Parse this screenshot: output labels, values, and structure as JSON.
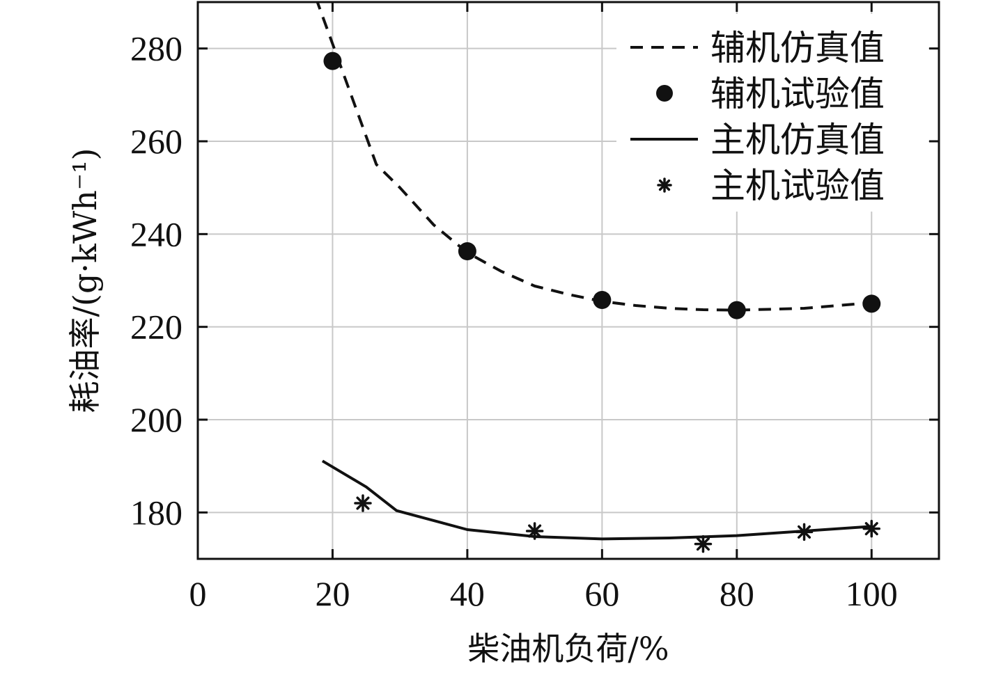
{
  "chart_data": {
    "type": "line",
    "xlabel": "柴油机负荷/%",
    "ylabel": "耗油率/(g·kWh⁻¹)",
    "xlim": [
      0,
      110
    ],
    "ylim": [
      170,
      290
    ],
    "x_ticks": [
      0,
      20,
      40,
      60,
      80,
      100
    ],
    "y_ticks": [
      180,
      200,
      220,
      240,
      260,
      280
    ],
    "x_tick_labels": [
      "0",
      "20",
      "40",
      "60",
      "80",
      "100"
    ],
    "y_tick_labels": [
      "180",
      "200",
      "220",
      "240",
      "260",
      "280"
    ],
    "grid": true,
    "legend_position": "top-right",
    "series": [
      {
        "name": "辅机仿真值",
        "style": "dashed-line",
        "color": "#111111",
        "x": [
          17.5,
          20,
          22.5,
          25,
          26.5,
          30,
          35,
          40,
          45,
          50,
          55,
          60,
          65,
          70,
          75,
          80,
          90,
          100
        ],
        "y": [
          291,
          281,
          271,
          261,
          255,
          250,
          242,
          236,
          232,
          228.8,
          227,
          225.5,
          224.6,
          224,
          223.7,
          223.6,
          224,
          225.2
        ]
      },
      {
        "name": "辅机试验值",
        "style": "filled-circle",
        "color": "#111111",
        "x": [
          20,
          40,
          60,
          80,
          100
        ],
        "y": [
          277.3,
          236.3,
          225.8,
          223.6,
          225
        ]
      },
      {
        "name": "主机仿真值",
        "style": "solid-line",
        "color": "#111111",
        "x": [
          18.5,
          25,
          29.5,
          40,
          50,
          60,
          70,
          80,
          90,
          100
        ],
        "y": [
          191.1,
          185.5,
          180.4,
          176.3,
          174.8,
          174.3,
          174.5,
          175,
          176,
          177
        ]
      },
      {
        "name": "主机试验值",
        "style": "asterisk",
        "color": "#111111",
        "x": [
          24.5,
          50,
          75,
          90,
          100
        ],
        "y": [
          182,
          176,
          173.2,
          175.8,
          176.5
        ]
      }
    ]
  }
}
